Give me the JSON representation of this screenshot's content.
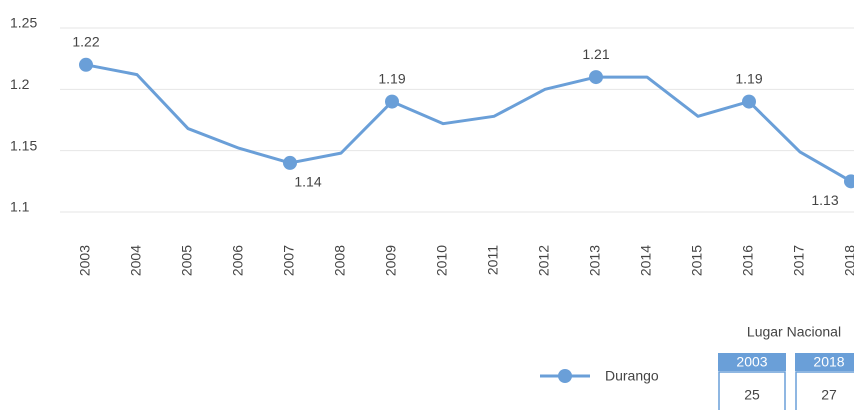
{
  "chart_data": {
    "type": "line",
    "categories": [
      "2003",
      "2004",
      "2005",
      "2006",
      "2007",
      "2008",
      "2009",
      "2010",
      "2011",
      "2012",
      "2013",
      "2014",
      "2015",
      "2016",
      "2017",
      "2018"
    ],
    "series": [
      {
        "name": "Durango",
        "color": "#6a9fd8",
        "values": [
          1.22,
          1.212,
          1.168,
          1.152,
          1.14,
          1.148,
          1.19,
          1.172,
          1.178,
          1.2,
          1.21,
          1.21,
          1.178,
          1.19,
          1.149,
          1.125
        ],
        "value_labels": [
          "1.22",
          null,
          null,
          null,
          "1.14",
          null,
          "1.19",
          null,
          null,
          null,
          "1.21",
          null,
          null,
          "1.19",
          null,
          "1.13"
        ],
        "markers": [
          true,
          false,
          false,
          false,
          true,
          false,
          true,
          false,
          false,
          false,
          true,
          false,
          false,
          true,
          false,
          true
        ]
      }
    ],
    "ylim": [
      1.1,
      1.25
    ],
    "yticks": [
      1.1,
      1.15,
      1.2,
      1.25
    ],
    "grid": true
  },
  "table": {
    "title": "Lugar Nacional",
    "headers": [
      "2003",
      "2018"
    ],
    "values": [
      "25",
      "27"
    ]
  }
}
